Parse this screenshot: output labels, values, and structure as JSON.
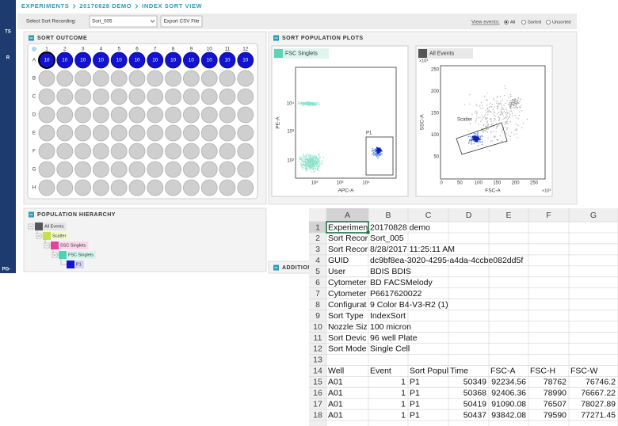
{
  "breadcrumb": [
    "EXPERIMENTS",
    "20170828 DEMO",
    "INDEX SORT VIEW"
  ],
  "sidebar_labels": [
    "TS",
    "R",
    "PG-"
  ],
  "toolbar": {
    "select_label": "Select Sort Recording:",
    "select_value": "Sort_005",
    "export_button": "Export CSV File",
    "view_events_label": "View events:",
    "view_events_options": [
      "All",
      "Sorted",
      "Unsorted"
    ]
  },
  "sort_outcome": {
    "title": "SORT OUTCOME",
    "columns": [
      1,
      2,
      3,
      4,
      5,
      6,
      7,
      8,
      9,
      10,
      11,
      12
    ],
    "rows": [
      "A",
      "B",
      "C",
      "D",
      "E",
      "F",
      "G",
      "H"
    ],
    "row_a_counts": [
      10,
      10,
      10,
      10,
      10,
      10,
      10,
      10,
      10,
      10,
      10,
      10
    ]
  },
  "sort_population_plots": {
    "title": "SORT POPULATION PLOTS",
    "plots": [
      {
        "tab": "FSC Singlets",
        "tab_color": "#5fd3b6",
        "x_label": "APC-A",
        "y_label": "PE-A",
        "gate": "P1",
        "x_ticks": [
          "10²",
          "10³",
          "10⁴"
        ],
        "y_ticks": [
          "10⁴",
          "10³",
          "10²"
        ]
      },
      {
        "tab": "All Events",
        "tab_color": "#555555",
        "x_label": "FSC-A",
        "y_label": "SSC-A",
        "gate": "Scatter",
        "x_ticks": [
          0,
          50,
          100,
          150,
          200,
          250
        ],
        "y_ticks": [
          250,
          200,
          150,
          100,
          50
        ],
        "multiplier": "×10³"
      }
    ]
  },
  "population_hierarchy": {
    "title": "POPULATION HIERARCHY",
    "nodes": [
      {
        "label": "All Events",
        "color": "#555555",
        "tint": "#e6e6e6"
      },
      {
        "label": "Scatter",
        "color": "#c5e04a",
        "tint": "#f1f8cf"
      },
      {
        "label": "SSC Singlets",
        "color": "#e0449c",
        "tint": "#f9d6ea"
      },
      {
        "label": "FSC Singlets",
        "color": "#4dd4b4",
        "tint": "#d5f5ee"
      },
      {
        "label": "P1",
        "color": "#1414d2",
        "tint": "#d2d2f7"
      }
    ]
  },
  "additional_heading": "ADDITION",
  "spreadsheet": {
    "columns": [
      "A",
      "B",
      "C",
      "D",
      "E",
      "F",
      "G"
    ],
    "row_headers": [
      1,
      2,
      3,
      4,
      5,
      6,
      7,
      8,
      9,
      10,
      11,
      12,
      13,
      14,
      15,
      16,
      17,
      18
    ],
    "rows": [
      [
        "Experimen",
        "20170828 demo"
      ],
      [
        "Sort Recor",
        "Sort_005"
      ],
      [
        "Sort Recor",
        "8/28/2017 11:25:11 AM"
      ],
      [
        "GUID",
        "dc9bf8ea-3020-4295-a4da-4ccbe082dd5f"
      ],
      [
        "User",
        "BDIS BDIS"
      ],
      [
        "Cytometer",
        "BD FACSMelody"
      ],
      [
        "Cytometer",
        "P6617620022"
      ],
      [
        "Configurat",
        "9 Color B4-V3-R2 (1)"
      ],
      [
        "Sort Type",
        "IndexSort"
      ],
      [
        "Nozzle Siz",
        "100 micron"
      ],
      [
        "Sort Devic",
        "96 well Plate"
      ],
      [
        "Sort Mode",
        "Single Cell"
      ],
      [],
      [
        "Well",
        "Event",
        "Sort Popul",
        "Time",
        "FSC-A",
        "FSC-H",
        "FSC-W"
      ],
      [
        "A01",
        1,
        "P1",
        50349,
        92234.56,
        78762,
        76746.2
      ],
      [
        "A01",
        1,
        "P1",
        50368,
        92406.36,
        78990,
        76667.22
      ],
      [
        "A01",
        1,
        "P1",
        50419,
        91090.08,
        76507,
        78027.89
      ],
      [
        "A01",
        1,
        "P1",
        50437,
        93842.08,
        79590,
        77271.45
      ]
    ]
  }
}
